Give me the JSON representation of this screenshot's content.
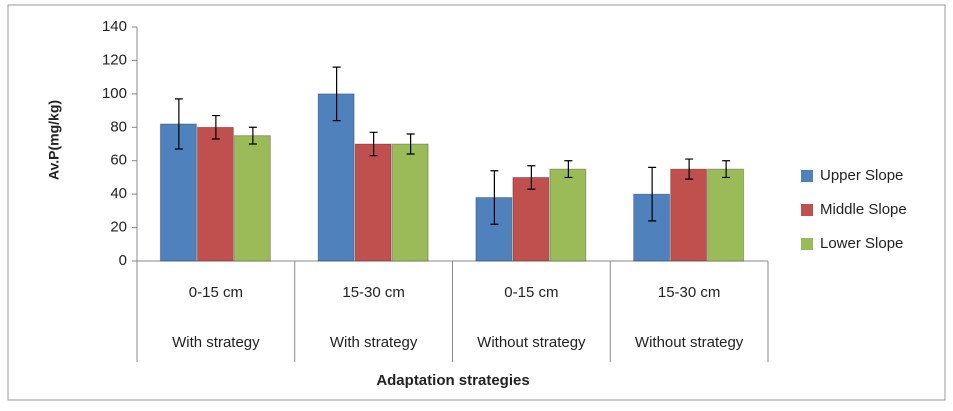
{
  "chart_data": {
    "type": "bar",
    "y_label": "Av.P(mg/kg)",
    "x_label": "Adaptation strategies",
    "categories": [
      "0-15 cm",
      "15-30 cm",
      "0-15 cm",
      "15-30 cm"
    ],
    "category_groups": [
      "With strategy",
      "With strategy",
      "Without strategy",
      "Without strategy"
    ],
    "series": [
      {
        "name": "Upper Slope",
        "color": "#4f81bd",
        "values": [
          82,
          100,
          38,
          40
        ],
        "errors": [
          15,
          16,
          16,
          16
        ]
      },
      {
        "name": "Middle Slope",
        "color": "#c0504d",
        "values": [
          80,
          70,
          50,
          55
        ],
        "errors": [
          7,
          7,
          7,
          6
        ]
      },
      {
        "name": "Lower Slope",
        "color": "#9bbb59",
        "values": [
          75,
          70,
          55,
          55
        ],
        "errors": [
          5,
          6,
          5,
          5
        ]
      }
    ],
    "ylim": [
      0,
      140
    ],
    "yticks": [
      0,
      20,
      40,
      60,
      80,
      100,
      120,
      140
    ],
    "grid": false,
    "legend": "right"
  }
}
